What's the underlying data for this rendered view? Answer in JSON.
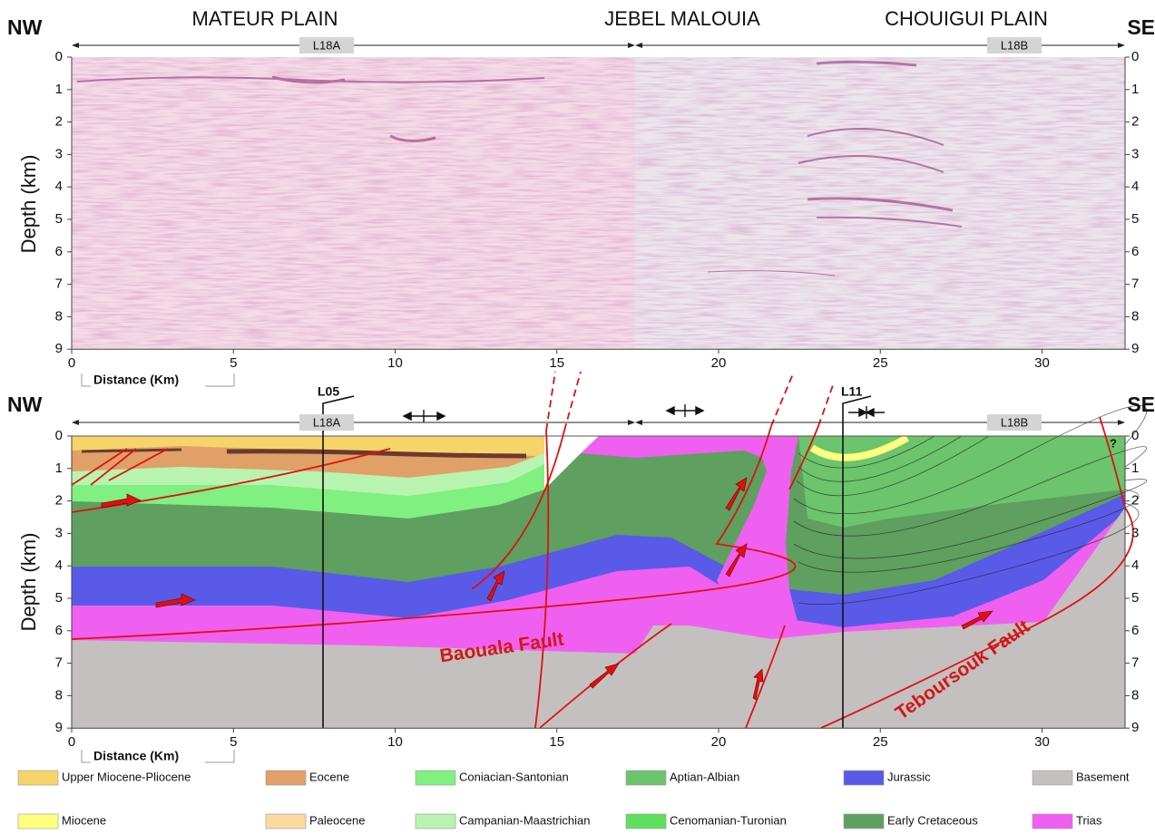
{
  "top_panel": {
    "corner_left": "NW",
    "corner_right": "SE",
    "regions": [
      "MATEUR PLAIN",
      "JEBEL MALOUIA",
      "CHOUIGUI PLAIN"
    ],
    "lines": [
      "L18A",
      "L18B"
    ],
    "y_label": "Depth (km)",
    "x_label": "Distance (Km)",
    "yticks": [
      0,
      1,
      2,
      3,
      4,
      5,
      6,
      7,
      8,
      9
    ],
    "xticks": [
      0,
      5,
      10,
      15,
      20,
      25,
      30
    ]
  },
  "bottom_panel": {
    "corner_left": "NW",
    "corner_right": "SE",
    "lines": [
      "L18A",
      "L18B"
    ],
    "wells": [
      "L05",
      "L11"
    ],
    "faults": [
      "Baouala Fault",
      "Teboursouk Fault"
    ],
    "unknown": "?",
    "y_label": "Depth (km)",
    "x_label": "Distance (Km)",
    "yticks": [
      0,
      1,
      2,
      3,
      4,
      5,
      6,
      7,
      8,
      9
    ],
    "xticks": [
      0,
      5,
      10,
      15,
      20,
      25,
      30
    ]
  },
  "legend": [
    {
      "label": "Upper Miocene-Pliocene",
      "color": "#f7d46a"
    },
    {
      "label": "Miocene",
      "color": "#ffff80"
    },
    {
      "label": "Eocene",
      "color": "#e0a068"
    },
    {
      "label": "Paleocene",
      "color": "#fcd9a0"
    },
    {
      "label": "Coniacian-Santonian",
      "color": "#80f080"
    },
    {
      "label": "Campanian-Maastrichian",
      "color": "#b8f4b0"
    },
    {
      "label": "Aptian-Albian",
      "color": "#6cc46c"
    },
    {
      "label": "Cenomanian-Turonian",
      "color": "#5ee05e"
    },
    {
      "label": "Jurassic",
      "color": "#5a5ae8"
    },
    {
      "label": "Early Cretaceous",
      "color": "#5f9f5f"
    },
    {
      "label": "Basement",
      "color": "#c4c0c0"
    },
    {
      "label": "Trias",
      "color": "#f060f0"
    }
  ]
}
